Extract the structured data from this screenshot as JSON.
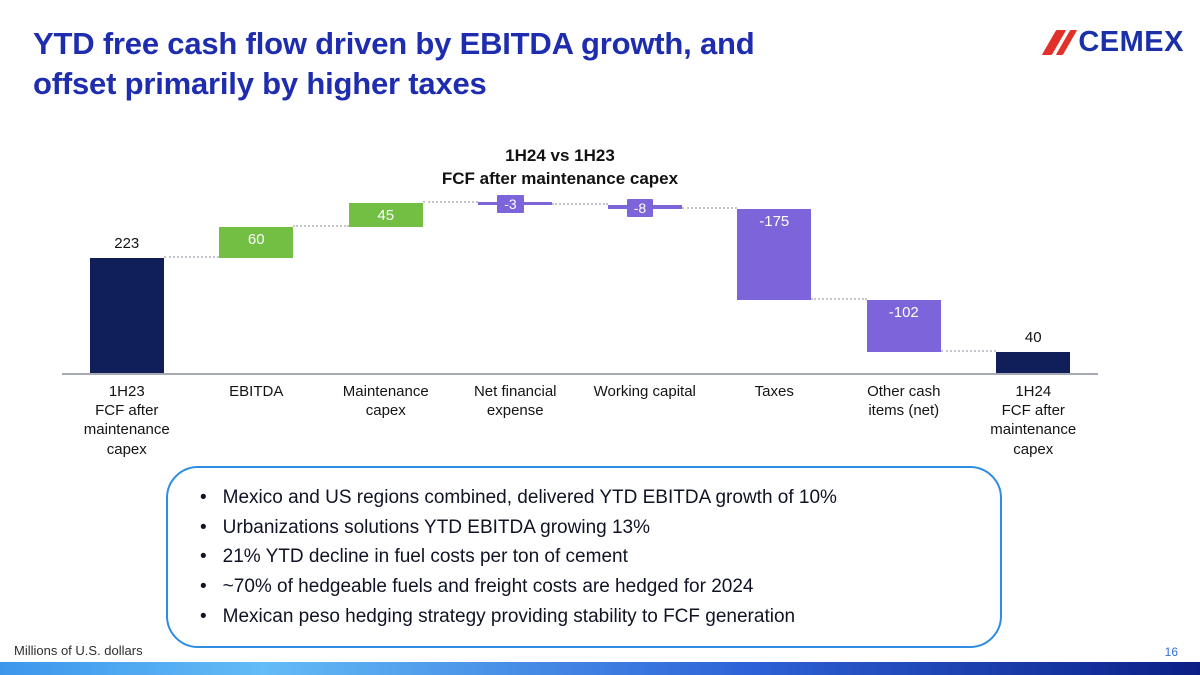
{
  "slide": {
    "title": "YTD free cash flow driven by EBITDA growth, and\noffset primarily by higher taxes",
    "logo_text": "CEMEX",
    "footer_note": "Millions of U.S. dollars",
    "page_number": "16"
  },
  "chart_data": {
    "type": "waterfall",
    "title_line1": "1H24 vs 1H23",
    "title_line2": "FCF after maintenance capex",
    "categories": [
      "1H23\nFCF after\nmaintenance\ncapex",
      "EBITDA",
      "Maintenance\ncapex",
      "Net financial\nexpense",
      "Working capital",
      "Taxes",
      "Other cash\nitems (net)",
      "1H24\nFCF after\nmaintenance\ncapex"
    ],
    "values": [
      223,
      60,
      45,
      -3,
      -8,
      -175,
      -102,
      40
    ],
    "labels": [
      "223",
      "60",
      "45",
      "-3",
      "-8",
      "-175",
      "-102",
      "40"
    ],
    "bar_types": [
      "total",
      "delta",
      "delta",
      "delta",
      "delta",
      "delta",
      "delta",
      "total"
    ],
    "colors": {
      "total": "#101e5a",
      "positive": "#72bf44",
      "negative": "#7d64da"
    },
    "ylim": [
      0,
      350
    ],
    "grid": false,
    "legend": "none"
  },
  "bullets": [
    "Mexico and US regions combined, delivered YTD EBITDA growth of 10%",
    "Urbanizations solutions YTD EBITDA growing 13%",
    "21% YTD decline in fuel costs per ton of cement",
    "~70% of hedgeable fuels and freight costs are hedged for 2024",
    "Mexican peso hedging strategy providing stability to FCF generation"
  ]
}
